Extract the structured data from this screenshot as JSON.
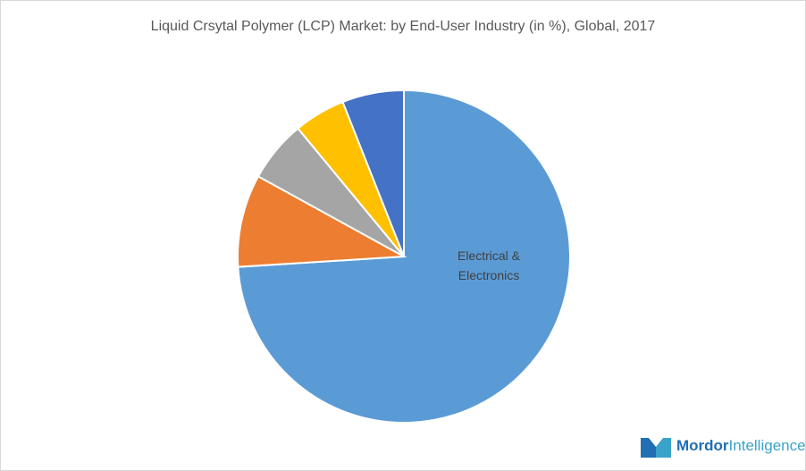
{
  "chart_data": {
    "type": "pie",
    "title": "Liquid Crsytal Polymer (LCP) Market: by End-User Industry (in %), Global, 2017",
    "categories": [
      "Electrical & Electronics",
      null,
      null,
      null,
      null
    ],
    "values": [
      74,
      9,
      6,
      5,
      6
    ],
    "colors": [
      "#5b9bd5",
      "#ed7d31",
      "#a5a5a5",
      "#ffc000",
      "#4472c4"
    ]
  },
  "logo": {
    "brand": "Mordor",
    "suffix": "Intelligence"
  }
}
